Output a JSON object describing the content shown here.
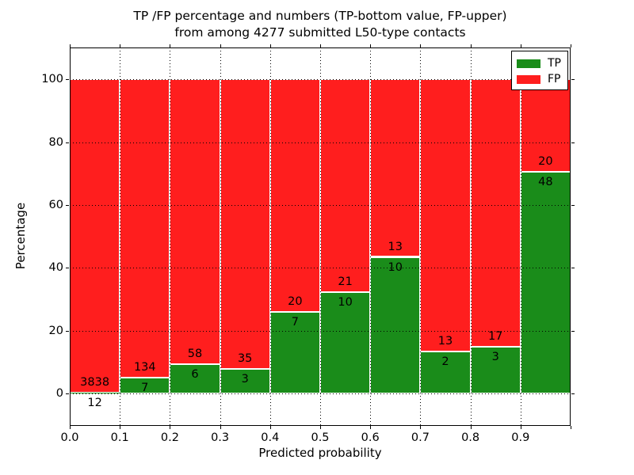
{
  "figure": {
    "title_line1": "TP /FP percentage and numbers (TP-bottom value, FP-upper)",
    "title_line2": "from among 4277 submitted L50-type contacts",
    "background_color": "#ffffff"
  },
  "axes": {
    "xlabel": "Predicted probability",
    "ylabel": "Percentage",
    "xtick_labels": [
      "0.0",
      "0.1",
      "0.2",
      "0.3",
      "0.4",
      "0.5",
      "0.6",
      "0.7",
      "0.8",
      "0.9"
    ],
    "ytick_labels": [
      "0",
      "20",
      "40",
      "60",
      "80",
      "100"
    ]
  },
  "legend": {
    "position": "upper right",
    "items": [
      {
        "label": "TP",
        "color": "#1A8C1A"
      },
      {
        "label": "FP",
        "color": "#FF1E1E"
      }
    ]
  },
  "chart_data": {
    "type": "bar",
    "stacked": true,
    "normalized_to_percent": 100,
    "title": "TP /FP percentage and numbers (TP-bottom value, FP-upper) from among 4277 submitted L50-type contacts",
    "xlabel": "Predicted probability",
    "ylabel": "Percentage",
    "total_submitted_contacts": 4277,
    "bin_edges": [
      0.0,
      0.1,
      0.2,
      0.3,
      0.4,
      0.5,
      0.6,
      0.7,
      0.8,
      0.9,
      1.0
    ],
    "categories": [
      "0.0-0.1",
      "0.1-0.2",
      "0.2-0.3",
      "0.3-0.4",
      "0.4-0.5",
      "0.5-0.6",
      "0.6-0.7",
      "0.7-0.8",
      "0.8-0.9",
      "0.9-1.0"
    ],
    "xticks": [
      0.0,
      0.1,
      0.2,
      0.3,
      0.4,
      0.5,
      0.6,
      0.7,
      0.8,
      0.9
    ],
    "yticks": [
      0,
      20,
      40,
      60,
      80,
      100
    ],
    "xlim": [
      0.0,
      1.0
    ],
    "ylim": [
      -10.3,
      110.1
    ],
    "grid": {
      "visible": true,
      "style": "dotted",
      "color": "#000000"
    },
    "legend_position": "upper right",
    "bar_edge_color": "#ffffff",
    "series": [
      {
        "name": "TP",
        "color": "#1A8C1A",
        "counts": [
          12,
          7,
          6,
          3,
          7,
          10,
          10,
          2,
          3,
          48
        ],
        "pct": [
          0.31,
          4.96,
          9.38,
          7.89,
          25.93,
          32.26,
          43.48,
          13.33,
          15.0,
          70.59
        ]
      },
      {
        "name": "FP",
        "color": "#FF1E1E",
        "counts": [
          3838,
          134,
          58,
          35,
          20,
          21,
          13,
          13,
          17,
          20
        ],
        "pct": [
          99.69,
          95.04,
          90.62,
          92.11,
          74.07,
          67.74,
          56.52,
          86.67,
          85.0,
          29.41
        ]
      }
    ]
  }
}
